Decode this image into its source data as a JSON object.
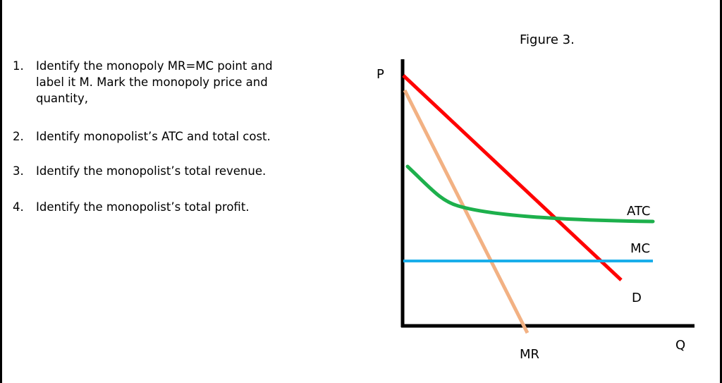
{
  "questions": [
    {
      "number": "1.",
      "text": "Identify the monopoly MR=MC point and label it M.  Mark the monopoly price and quantity,"
    },
    {
      "number": "2.",
      "text": "Identify monopolist’s ATC and total cost."
    },
    {
      "number": "3.",
      "text": "Identify the monopolist’s total revenue."
    },
    {
      "number": "4.",
      "text": "Identify the monopolist’s total profit."
    }
  ],
  "figure": {
    "title": "Figure 3.",
    "y_axis_label": "P",
    "x_axis_label": "Q",
    "curves": {
      "demand": {
        "label": "D",
        "color": "#ff0000"
      },
      "marginal_revenue": {
        "label": "MR",
        "color": "#f2b183"
      },
      "average_total_cost": {
        "label": "ATC",
        "color": "#1db04c"
      },
      "marginal_cost": {
        "label": "MC",
        "color": "#1aaeea"
      }
    }
  }
}
